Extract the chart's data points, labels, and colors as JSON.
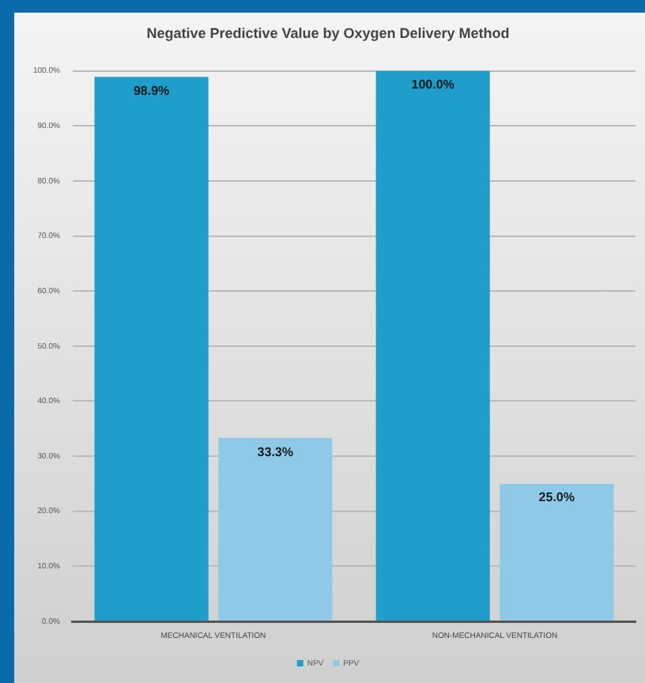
{
  "chart_data": {
    "type": "bar",
    "title": "Negative Predictive Value by Oxygen Delivery Method",
    "categories": [
      "MECHANICAL VENTILATION",
      "NON-MECHANICAL VENTILATION"
    ],
    "series": [
      {
        "name": "NPV",
        "color": "#1f9dcb",
        "values": [
          98.9,
          100.0
        ],
        "value_labels": [
          "98.9%",
          "100.0%"
        ]
      },
      {
        "name": "PPV",
        "color": "#8ecae8",
        "values": [
          33.3,
          25.0
        ],
        "value_labels": [
          "33.3%",
          "25.0%"
        ]
      }
    ],
    "ylim": [
      0,
      100
    ],
    "yticks": [
      {
        "value": 0,
        "label": "0.0%"
      },
      {
        "value": 10,
        "label": "10.0%"
      },
      {
        "value": 20,
        "label": "20.0%"
      },
      {
        "value": 30,
        "label": "30.0%"
      },
      {
        "value": 40,
        "label": "40.0%"
      },
      {
        "value": 50,
        "label": "50.0%"
      },
      {
        "value": 60,
        "label": "60.0%"
      },
      {
        "value": 70,
        "label": "70.0%"
      },
      {
        "value": 80,
        "label": "80.0%"
      },
      {
        "value": 90,
        "label": "90.0%"
      },
      {
        "value": 100,
        "label": "100.0%"
      }
    ],
    "grid": "y",
    "legend": "bottom"
  }
}
